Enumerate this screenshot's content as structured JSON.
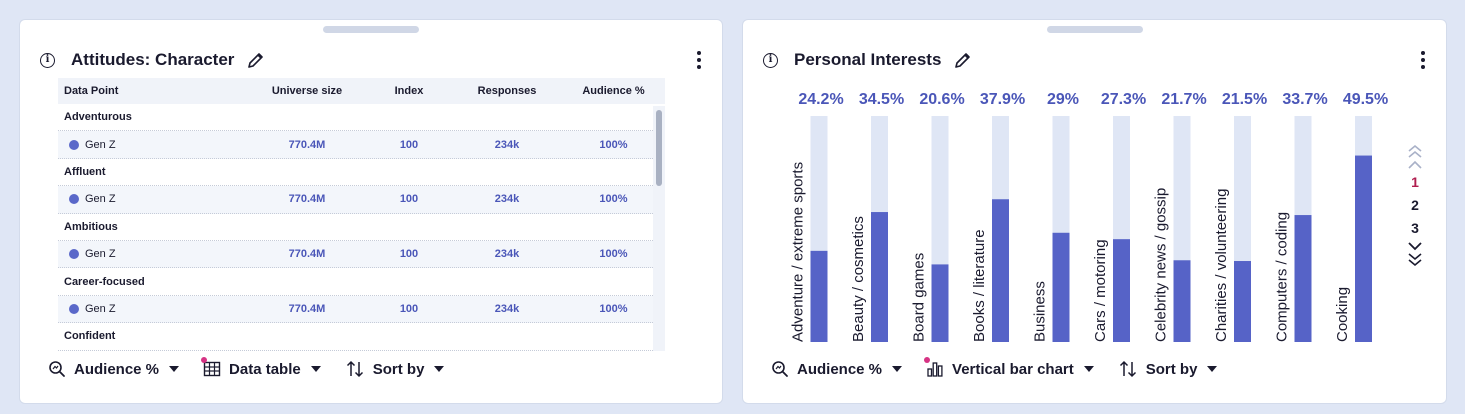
{
  "left_panel": {
    "title": "Attitudes: Character",
    "columns": [
      "Data Point",
      "Universe size",
      "Index",
      "Responses",
      "Audience %"
    ],
    "groups": [
      {
        "name": "Adventurous",
        "items": [
          {
            "label": "Gen Z",
            "universe": "770.4M",
            "index": "100",
            "responses": "234k",
            "audience": "100%"
          }
        ]
      },
      {
        "name": "Affluent",
        "items": [
          {
            "label": "Gen Z",
            "universe": "770.4M",
            "index": "100",
            "responses": "234k",
            "audience": "100%"
          }
        ]
      },
      {
        "name": "Ambitious",
        "items": [
          {
            "label": "Gen Z",
            "universe": "770.4M",
            "index": "100",
            "responses": "234k",
            "audience": "100%"
          }
        ]
      },
      {
        "name": "Career-focused",
        "items": [
          {
            "label": "Gen Z",
            "universe": "770.4M",
            "index": "100",
            "responses": "234k",
            "audience": "100%"
          }
        ]
      },
      {
        "name": "Confident",
        "items": []
      }
    ],
    "footer": {
      "metric_label": "Audience %",
      "view_label": "Data table",
      "sort_label": "Sort by"
    }
  },
  "right_panel": {
    "title": "Personal Interests",
    "footer": {
      "metric_label": "Audience %",
      "view_label": "Vertical bar chart",
      "sort_label": "Sort by"
    },
    "pager": {
      "pages": [
        "1",
        "2",
        "3"
      ],
      "active": "1"
    }
  },
  "colors": {
    "bar_fill": "#5663c7",
    "bar_track": "#dfe6f5",
    "value_label": "#4a56b8",
    "accent_pink": "#d63384"
  },
  "icons": {
    "info": "info-icon",
    "edit": "pencil-icon",
    "menu": "kebab-menu-icon",
    "metric": "zoom-search-icon",
    "table": "grid-table-icon",
    "chart": "bar-chart-icon",
    "sort": "sort-arrows-icon",
    "caret": "caret-down-icon"
  },
  "chart_data": {
    "type": "bar",
    "orientation": "vertical",
    "categories": [
      "Adventure / extreme sports",
      "Beauty / cosmetics",
      "Board games",
      "Books / literature",
      "Business",
      "Cars / motoring",
      "Celebrity news / gossip",
      "Charities / volunteering",
      "Computers / coding",
      "Cooking"
    ],
    "values": [
      24.2,
      34.5,
      20.6,
      37.9,
      29,
      27.3,
      21.7,
      21.5,
      33.7,
      49.5
    ],
    "value_labels": [
      "24.2%",
      "34.5%",
      "20.6%",
      "37.9%",
      "29%",
      "27.3%",
      "21.7%",
      "21.5%",
      "33.7%",
      "49.5%"
    ],
    "ylim": [
      0,
      60
    ],
    "grid": false,
    "legend": "none"
  }
}
